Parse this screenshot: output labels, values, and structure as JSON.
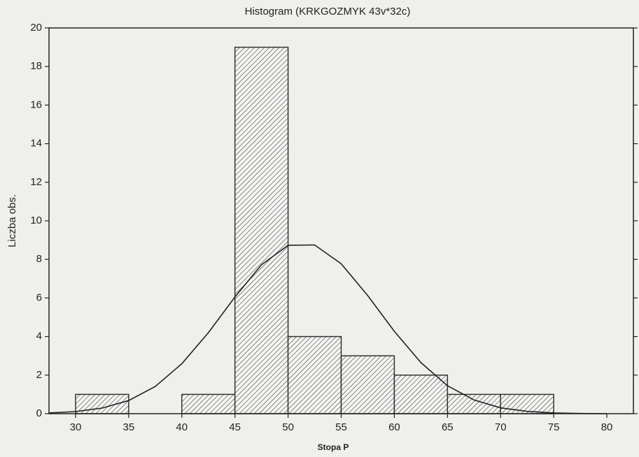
{
  "chart_data": {
    "type": "histogram",
    "title": "Histogram (KRKGOZMYK 43v*32c)",
    "x_label": "Stopa P",
    "y_label": "Liczba obs.",
    "bins": [
      30,
      35,
      40,
      45,
      50,
      55,
      60,
      65,
      70,
      75
    ],
    "values": [
      1,
      0,
      1,
      19,
      4,
      3,
      2,
      1,
      1
    ],
    "color": "#333333",
    "xlim": [
      27.5,
      82.5
    ],
    "xticks": [
      30,
      35,
      40,
      45,
      50,
      55,
      60,
      65,
      70,
      75,
      80
    ],
    "ylim": [
      0,
      20
    ],
    "yticks": [
      0,
      2,
      4,
      6,
      8,
      10,
      12,
      14,
      16,
      18,
      20
    ],
    "curve": {
      "x": [
        27.5,
        30,
        32.5,
        35,
        37.5,
        40,
        42.5,
        45,
        47.5,
        50,
        52.5,
        55,
        57.5,
        60,
        62.5,
        65,
        67.5,
        70,
        72.5,
        75,
        77.5,
        80
      ],
      "y": [
        0.04,
        0.11,
        0.29,
        0.68,
        1.41,
        2.59,
        4.2,
        6.05,
        7.72,
        8.73,
        8.75,
        7.77,
        6.12,
        4.27,
        2.65,
        1.45,
        0.71,
        0.3,
        0.12,
        0.04,
        0.01,
        0.0
      ]
    }
  }
}
